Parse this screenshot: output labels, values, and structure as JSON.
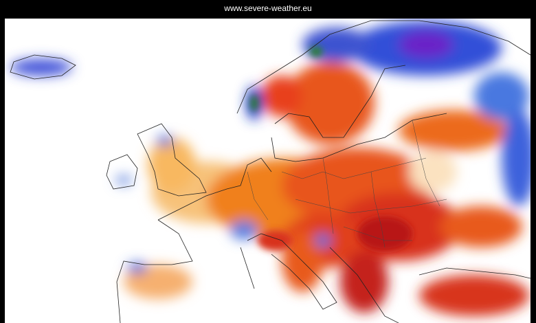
{
  "header": {
    "source": "www.severe-weather.eu"
  }
}
